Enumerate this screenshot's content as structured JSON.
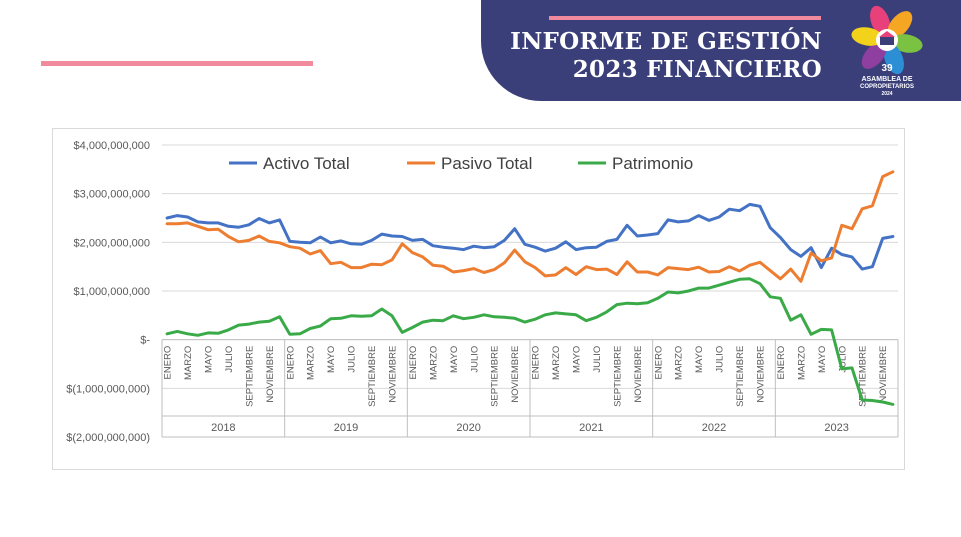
{
  "header": {
    "title_line1": "INFORME DE GESTIÓN",
    "title_line2": "2023 FINANCIERO"
  },
  "logo": {
    "number": "39",
    "line1": "ASAMBLEA DE",
    "line2": "COPROPIETARIOS",
    "year": "2024",
    "icon": "flower-logo-icon",
    "petal_colors": [
      "#e8407a",
      "#f5a623",
      "#7bc142",
      "#2c8fd6",
      "#8e3fa0",
      "#f3d21b"
    ]
  },
  "chart_data": {
    "type": "line",
    "title": "",
    "xlabel": "",
    "ylabel": "",
    "ylim": [
      -2000000000,
      4000000000
    ],
    "yticks": [
      {
        "value": 4000000000,
        "label": "$4,000,000,000"
      },
      {
        "value": 3000000000,
        "label": "$3,000,000,000"
      },
      {
        "value": 2000000000,
        "label": "$2,000,000,000"
      },
      {
        "value": 1000000000,
        "label": "$1,000,000,000"
      },
      {
        "value": 0,
        "label": "$-"
      },
      {
        "value": -1000000000,
        "label": "$(1,000,000,000)"
      },
      {
        "value": -2000000000,
        "label": "$(2,000,000,000)"
      }
    ],
    "grid": true,
    "legend": "top",
    "years": [
      "2018",
      "2019",
      "2020",
      "2021",
      "2022",
      "2023"
    ],
    "month_labels": [
      "ENERO",
      "MARZO",
      "MAYO",
      "JULIO",
      "SEPTIEMBRE",
      "NOVIEMBRE"
    ],
    "month_label_indices": [
      0,
      2,
      4,
      6,
      8,
      10
    ],
    "series": [
      {
        "name": "Activo Total",
        "color": "#4472c4",
        "values": [
          2500000000,
          2550000000,
          2520000000,
          2420000000,
          2400000000,
          2400000000,
          2330000000,
          2310000000,
          2360000000,
          2490000000,
          2400000000,
          2460000000,
          2020000000,
          2000000000,
          1990000000,
          2110000000,
          1990000000,
          2030000000,
          1970000000,
          1960000000,
          2040000000,
          2170000000,
          2130000000,
          2120000000,
          2040000000,
          2060000000,
          1930000000,
          1900000000,
          1880000000,
          1850000000,
          1920000000,
          1890000000,
          1910000000,
          2040000000,
          2280000000,
          1960000000,
          1900000000,
          1820000000,
          1880000000,
          2010000000,
          1850000000,
          1890000000,
          1900000000,
          2020000000,
          2060000000,
          2350000000,
          2130000000,
          2150000000,
          2180000000,
          2460000000,
          2420000000,
          2440000000,
          2550000000,
          2450000000,
          2520000000,
          2680000000,
          2650000000,
          2780000000,
          2740000000,
          2300000000,
          2100000000,
          1850000000,
          1710000000,
          1890000000,
          1480000000,
          1880000000,
          1750000000,
          1700000000,
          1450000000,
          1500000000,
          2080000000,
          2120000000
        ]
      },
      {
        "name": "Pasivo Total",
        "color": "#ed7d31",
        "values": [
          2380000000,
          2380000000,
          2400000000,
          2330000000,
          2260000000,
          2270000000,
          2120000000,
          2010000000,
          2040000000,
          2130000000,
          2020000000,
          1990000000,
          1910000000,
          1880000000,
          1760000000,
          1830000000,
          1560000000,
          1590000000,
          1480000000,
          1480000000,
          1550000000,
          1540000000,
          1640000000,
          1970000000,
          1790000000,
          1700000000,
          1530000000,
          1510000000,
          1390000000,
          1420000000,
          1460000000,
          1380000000,
          1440000000,
          1580000000,
          1840000000,
          1600000000,
          1480000000,
          1310000000,
          1330000000,
          1480000000,
          1340000000,
          1500000000,
          1440000000,
          1450000000,
          1340000000,
          1600000000,
          1390000000,
          1390000000,
          1330000000,
          1480000000,
          1460000000,
          1440000000,
          1490000000,
          1390000000,
          1400000000,
          1500000000,
          1410000000,
          1530000000,
          1590000000,
          1420000000,
          1250000000,
          1450000000,
          1200000000,
          1780000000,
          1620000000,
          1680000000,
          2350000000,
          2280000000,
          2690000000,
          2750000000,
          3350000000,
          3450000000
        ]
      },
      {
        "name": "Patrimonio",
        "color": "#3aaa48",
        "values": [
          120000000,
          170000000,
          120000000,
          90000000,
          140000000,
          130000000,
          200000000,
          300000000,
          320000000,
          360000000,
          380000000,
          470000000,
          110000000,
          120000000,
          230000000,
          280000000,
          430000000,
          440000000,
          490000000,
          480000000,
          490000000,
          630000000,
          490000000,
          150000000,
          250000000,
          360000000,
          400000000,
          390000000,
          490000000,
          430000000,
          460000000,
          510000000,
          470000000,
          460000000,
          440000000,
          360000000,
          420000000,
          510000000,
          550000000,
          530000000,
          510000000,
          390000000,
          460000000,
          570000000,
          720000000,
          750000000,
          740000000,
          760000000,
          850000000,
          980000000,
          960000000,
          1000000000,
          1060000000,
          1060000000,
          1120000000,
          1180000000,
          1240000000,
          1250000000,
          1150000000,
          880000000,
          850000000,
          400000000,
          510000000,
          110000000,
          210000000,
          200000000,
          -600000000,
          -580000000,
          -1240000000,
          -1250000000,
          -1280000000,
          -1330000000
        ]
      }
    ]
  }
}
